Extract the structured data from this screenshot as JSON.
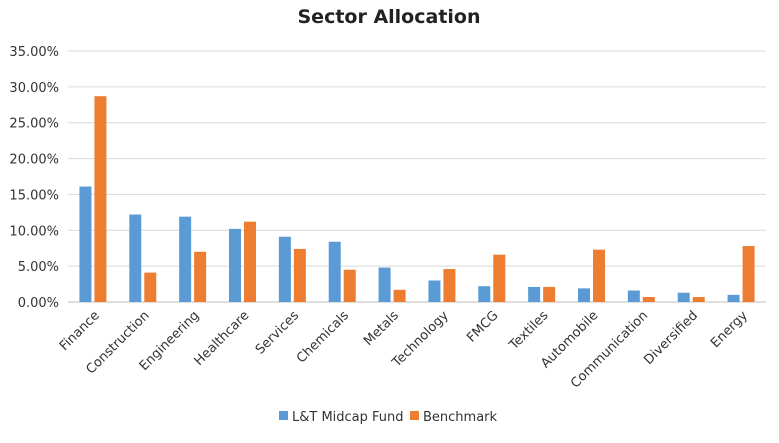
{
  "chart_data": {
    "type": "bar",
    "title": "Sector Allocation",
    "xlabel": "",
    "ylabel": "",
    "categories": [
      "Finance",
      "Construction",
      "Engineering",
      "Healthcare",
      "Services",
      "Chemicals",
      "Metals",
      "Technology",
      "FMCG",
      "Textiles",
      "Automobile",
      "Communication",
      "Diversified",
      "Energy"
    ],
    "series": [
      {
        "name": "L&T Midcap Fund",
        "color": "#5b9bd5",
        "values": [
          16.1,
          12.2,
          11.9,
          10.2,
          9.1,
          8.4,
          4.8,
          3.0,
          2.2,
          2.1,
          1.9,
          1.6,
          1.3,
          1.0
        ]
      },
      {
        "name": "Benchmark",
        "color": "#ed7d31",
        "values": [
          28.7,
          4.1,
          7.0,
          11.2,
          7.4,
          4.5,
          1.7,
          4.6,
          6.6,
          2.1,
          7.3,
          0.7,
          0.7,
          7.8
        ]
      }
    ],
    "ylim": [
      0,
      35
    ],
    "yticks": [
      "0.00%",
      "5.00%",
      "10.00%",
      "15.00%",
      "20.00%",
      "25.00%",
      "30.00%",
      "35.00%"
    ],
    "grid": true,
    "legend_position": "bottom"
  }
}
